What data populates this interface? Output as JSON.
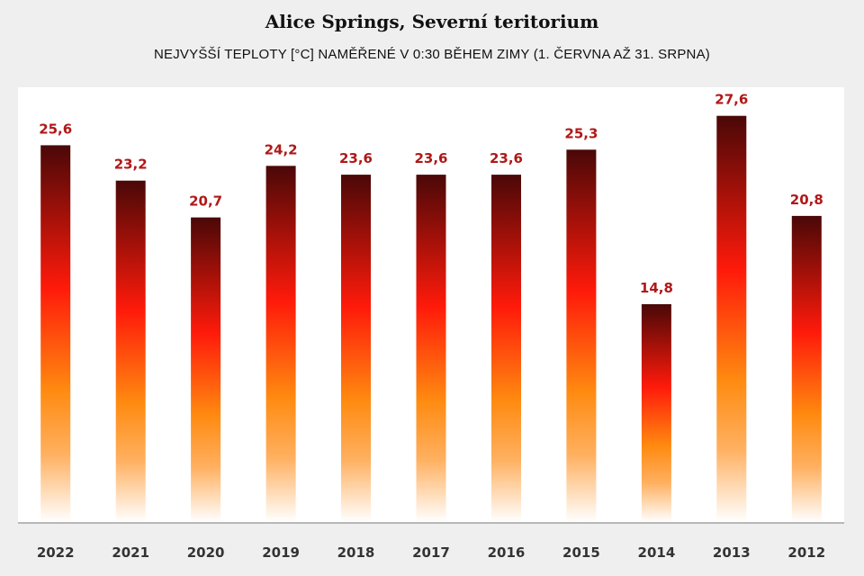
{
  "chart_data": {
    "type": "bar",
    "title": "Alice Springs, Severní teritorium",
    "subtitle": "NEJVYŠŠÍ TEPLOTY [°C] NAMĚŘENÉ  V 0:30 BĚHEM ZIMY (1. ČERVNA AŽ 31. SRPNA)",
    "categories": [
      "2022",
      "2021",
      "2020",
      "2019",
      "2018",
      "2017",
      "2016",
      "2015",
      "2014",
      "2013",
      "2012"
    ],
    "values": [
      25.6,
      23.2,
      20.7,
      24.2,
      23.6,
      23.6,
      23.6,
      25.3,
      14.8,
      27.6,
      20.8
    ],
    "value_labels": [
      "25,6",
      "23,2",
      "20,7",
      "24,2",
      "23,6",
      "23,6",
      "23,6",
      "25,3",
      "14,8",
      "27,6",
      "20,8"
    ],
    "xlabel": "",
    "ylabel": "",
    "ylim": [
      0,
      32
    ],
    "grid": false,
    "legend": "none",
    "colors": {
      "gradient_top": "#4a0808",
      "gradient_mid": "#ff1a0a",
      "gradient_orange": "#ff8a10",
      "gradient_bottom": "#ffffff",
      "label": "#b01818"
    }
  }
}
